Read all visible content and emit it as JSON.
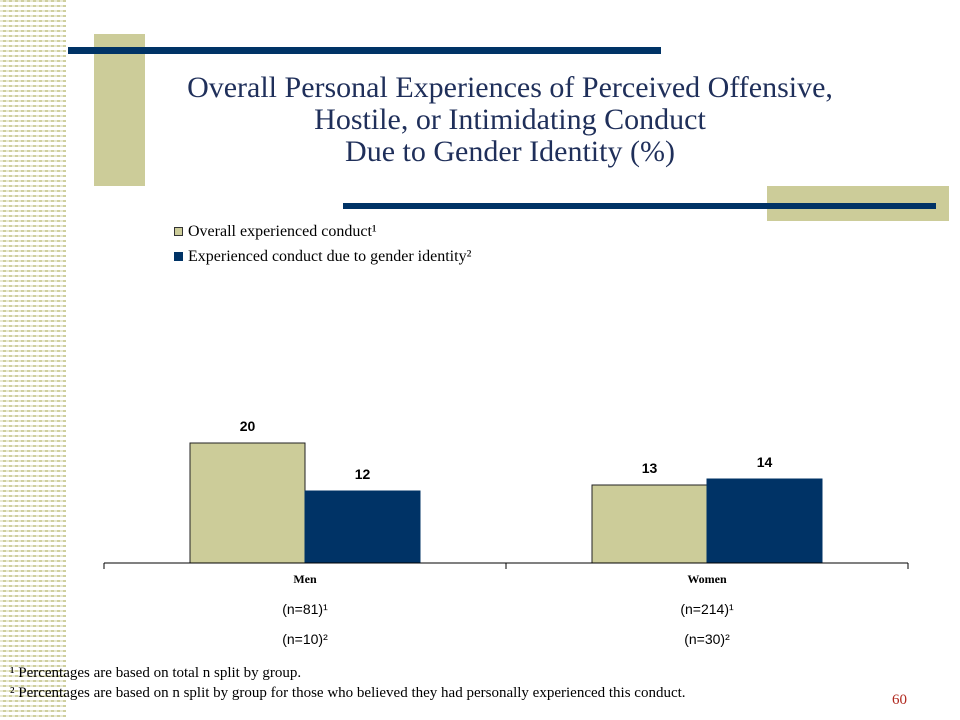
{
  "slide": {
    "title_lines": [
      "Overall Personal Experiences of Perceived Offensive,",
      "Hostile, or Intimidating Conduct",
      "Due to Gender Identity (%)"
    ],
    "footnotes": [
      "¹ Percentages are based on total n split by group.",
      "² Percentages are based on n split by group for those who believed they had  personally experienced this conduct."
    ],
    "page_number": "60"
  },
  "chart_data": {
    "type": "bar",
    "title": "Overall Personal Experiences of Perceived Offensive, Hostile, or Intimidating Conduct Due to Gender Identity (%)",
    "categories": [
      "Men",
      "Women"
    ],
    "category_sublabels": [
      [
        "(n=81)¹",
        "(n=10)²"
      ],
      [
        "(n=214)¹",
        "(n=30)²"
      ]
    ],
    "series": [
      {
        "name": "Overall experienced conduct¹",
        "values": [
          20,
          13
        ],
        "color": "#cccc99"
      },
      {
        "name": "Experienced conduct due to gender identity²",
        "values": [
          12,
          14
        ],
        "color": "#003366"
      }
    ],
    "data_labels": [
      [
        "20",
        "13"
      ],
      [
        "12",
        "14"
      ]
    ],
    "ylim": [
      0,
      30
    ],
    "grid": false,
    "legend_position": "top-left"
  }
}
